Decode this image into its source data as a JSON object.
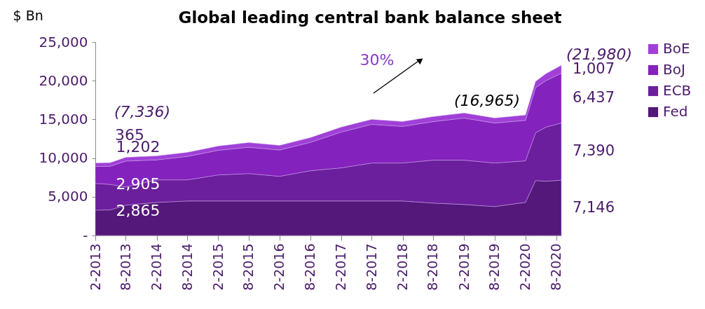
{
  "chart_data": {
    "type": "area",
    "title": "Global leading central bank balance sheet",
    "ylabel": "$ Bn",
    "x": [
      "2013-02",
      "2013-05",
      "2013-08",
      "2014-02",
      "2014-08",
      "2015-02",
      "2015-08",
      "2016-02",
      "2016-08",
      "2017-02",
      "2017-08",
      "2018-02",
      "2018-08",
      "2019-02",
      "2019-08",
      "2020-02",
      "2020-04",
      "2020-06",
      "2020-09"
    ],
    "series": [
      {
        "name": "Fed",
        "color": "#54177a",
        "values": [
          3270,
          3300,
          3910,
          4270,
          4450,
          4450,
          4450,
          4450,
          4450,
          4450,
          4450,
          4450,
          4180,
          4000,
          3730,
          4270,
          7090,
          7000,
          7146
        ],
        "value_labels": [
          null,
          null,
          null,
          null,
          null,
          null,
          null,
          null,
          null,
          null,
          null,
          null,
          null,
          null,
          null,
          null,
          null,
          null,
          "7,146"
        ]
      },
      {
        "name": "ECB",
        "color": "#6b1f9c",
        "values": [
          3460,
          3300,
          2360,
          2910,
          2730,
          3370,
          3550,
          3190,
          3910,
          4280,
          4910,
          4910,
          5550,
          5730,
          5630,
          5370,
          6180,
          7000,
          7390
        ],
        "value_labels": [
          null,
          null,
          null,
          null,
          null,
          null,
          null,
          null,
          null,
          null,
          null,
          null,
          null,
          null,
          null,
          null,
          null,
          null,
          "7,390"
        ]
      },
      {
        "name": "BoJ",
        "color": "#8422bd",
        "values": [
          2180,
          2350,
          3340,
          2590,
          3030,
          3180,
          3400,
          3400,
          3660,
          4630,
          5000,
          4730,
          4980,
          5440,
          5170,
          5230,
          5830,
          6000,
          6437
        ],
        "value_labels": [
          null,
          null,
          null,
          null,
          null,
          null,
          null,
          null,
          null,
          null,
          null,
          null,
          null,
          null,
          null,
          null,
          null,
          null,
          "6,437"
        ]
      },
      {
        "name": "BoE",
        "color": "#a040d8",
        "values": [
          450,
          450,
          480,
          500,
          520,
          550,
          600,
          600,
          620,
          640,
          640,
          640,
          650,
          650,
          650,
          680,
          800,
          900,
          1007
        ],
        "value_labels": [
          null,
          null,
          null,
          null,
          null,
          null,
          null,
          null,
          null,
          null,
          null,
          null,
          null,
          null,
          null,
          null,
          null,
          null,
          "1,007"
        ]
      }
    ],
    "stacked": true,
    "xlim": [
      "2013-02",
      "2020-09"
    ],
    "xticks": [
      {
        "value": "2013-02",
        "label": "2-2013"
      },
      {
        "value": "2013-08",
        "label": "8-2013"
      },
      {
        "value": "2014-02",
        "label": "2-2014"
      },
      {
        "value": "2014-08",
        "label": "8-2014"
      },
      {
        "value": "2015-02",
        "label": "2-2015"
      },
      {
        "value": "2015-08",
        "label": "8-2015"
      },
      {
        "value": "2016-02",
        "label": "2-2016"
      },
      {
        "value": "2016-08",
        "label": "8-2016"
      },
      {
        "value": "2017-02",
        "label": "2-2017"
      },
      {
        "value": "2017-08",
        "label": "8-2017"
      },
      {
        "value": "2018-02",
        "label": "2-2018"
      },
      {
        "value": "2018-08",
        "label": "8-2018"
      },
      {
        "value": "2019-02",
        "label": "2-2019"
      },
      {
        "value": "2019-08",
        "label": "8-2019"
      },
      {
        "value": "2020-02",
        "label": "2-2020"
      },
      {
        "value": "2020-08",
        "label": "8-2020"
      }
    ],
    "ylim": [
      0,
      25000
    ],
    "yticks": [
      {
        "value": 0,
        "label": "-"
      },
      {
        "value": 5000,
        "label": "5,000"
      },
      {
        "value": 10000,
        "label": "10,000"
      },
      {
        "value": 15000,
        "label": "15,000"
      },
      {
        "value": 20000,
        "label": "20,000"
      },
      {
        "value": 25000,
        "label": "25,000"
      }
    ],
    "annotations": [
      "(7,336)",
      "365",
      "1,202",
      "2,905",
      "2,865",
      "30%",
      "(16,965)",
      "(21,980)"
    ],
    "legend": "right",
    "grid": false
  }
}
